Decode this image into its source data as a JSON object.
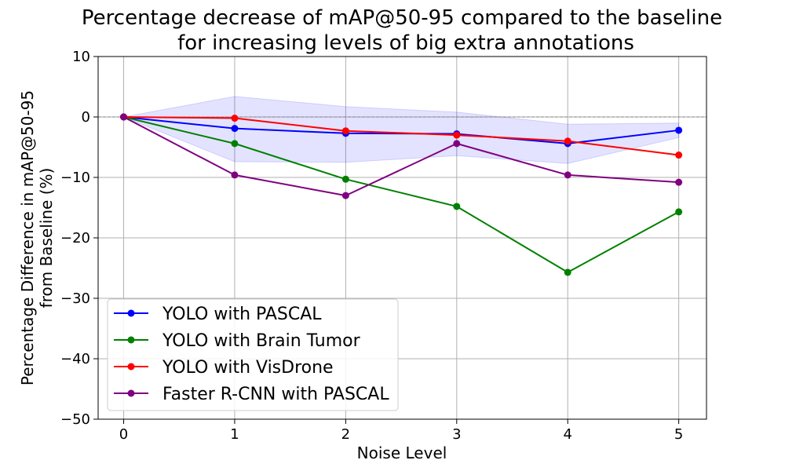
{
  "chart_data": {
    "type": "line",
    "title_lines": [
      "Percentage decrease of mAP@50-95 compared to the baseline",
      "for increasing levels of big extra annotations"
    ],
    "xlabel": "Noise Level",
    "ylabel_lines": [
      "Percentage Difference in mAP@50-95",
      "from Baseline (%)"
    ],
    "x": [
      0,
      1,
      2,
      3,
      4,
      5
    ],
    "x_ticks": [
      0,
      1,
      2,
      3,
      4,
      5
    ],
    "y_ticks": [
      10,
      0,
      -10,
      -20,
      -30,
      -40,
      -50
    ],
    "xlim": [
      -0.23,
      5.25
    ],
    "ylim": [
      -50,
      10
    ],
    "grid": true,
    "legend_position": "lower-left",
    "series": [
      {
        "name": "YOLO with PASCAL",
        "color": "#0000ff",
        "values": [
          0,
          -1.9,
          -2.7,
          -2.8,
          -4.4,
          -2.2
        ]
      },
      {
        "name": "YOLO with Brain Tumor",
        "color": "#008000",
        "values": [
          0,
          -4.4,
          -10.3,
          -14.8,
          -25.7,
          -15.7
        ]
      },
      {
        "name": "YOLO with VisDrone",
        "color": "#ff0000",
        "values": [
          0,
          -0.2,
          -2.3,
          -3.0,
          -4.0,
          -6.3
        ]
      },
      {
        "name": "Faster R-CNN with PASCAL",
        "color": "#800080",
        "values": [
          0,
          -9.6,
          -13.0,
          -4.4,
          -9.6,
          -10.8
        ]
      }
    ],
    "band": {
      "color": "#0000ff",
      "upper": [
        0,
        3.4,
        1.7,
        0.8,
        -1.2,
        -1.0
      ],
      "lower": [
        0,
        -7.4,
        -7.5,
        -6.4,
        -7.7,
        -3.4
      ]
    },
    "reference_line": {
      "y": 0,
      "color": "#808080",
      "style": "dashed"
    }
  }
}
